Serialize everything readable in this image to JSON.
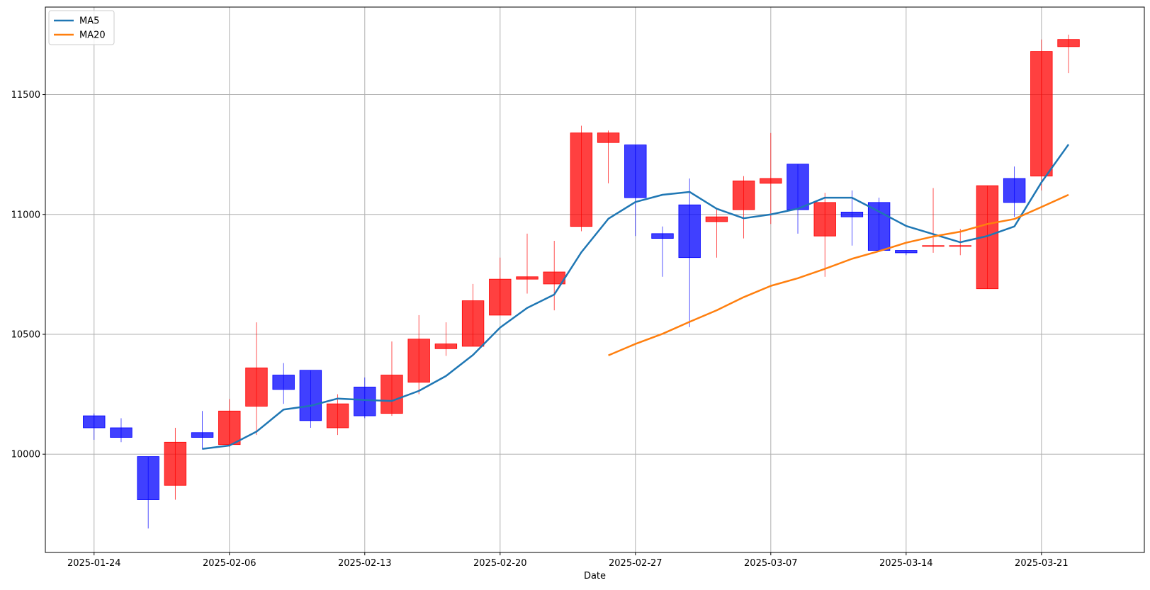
{
  "chart_data": {
    "type": "candlestick",
    "xlabel": "Date",
    "ylabel": "",
    "ylim": [
      9590,
      11865
    ],
    "xlim": [
      -1.8,
      38.8
    ],
    "grid": true,
    "legend_position": "top-left",
    "colors": {
      "up": "#ff0000",
      "down": "#0000ff",
      "ma5": "#1f77b4",
      "ma20": "#ff7f0e"
    },
    "x_ticks": [
      {
        "index": 0,
        "label": "2025-01-24"
      },
      {
        "index": 5,
        "label": "2025-02-06"
      },
      {
        "index": 10,
        "label": "2025-02-13"
      },
      {
        "index": 15,
        "label": "2025-02-20"
      },
      {
        "index": 20,
        "label": "2025-02-27"
      },
      {
        "index": 25,
        "label": "2025-03-07"
      },
      {
        "index": 30,
        "label": "2025-03-14"
      },
      {
        "index": 35,
        "label": "2025-03-21"
      }
    ],
    "y_ticks": [
      10000,
      10500,
      11000,
      11500
    ],
    "candles": [
      {
        "o": 10160,
        "h": 10170,
        "l": 10060,
        "c": 10110
      },
      {
        "o": 10110,
        "h": 10150,
        "l": 10050,
        "c": 10070
      },
      {
        "o": 9990,
        "h": 9990,
        "l": 9690,
        "c": 9810
      },
      {
        "o": 9870,
        "h": 10110,
        "l": 9810,
        "c": 10050
      },
      {
        "o": 10090,
        "h": 10180,
        "l": 10020,
        "c": 10070
      },
      {
        "o": 10040,
        "h": 10230,
        "l": 10030,
        "c": 10180
      },
      {
        "o": 10200,
        "h": 10550,
        "l": 10080,
        "c": 10360
      },
      {
        "o": 10330,
        "h": 10380,
        "l": 10210,
        "c": 10270
      },
      {
        "o": 10350,
        "h": 10350,
        "l": 10110,
        "c": 10140
      },
      {
        "o": 10110,
        "h": 10250,
        "l": 10080,
        "c": 10210
      },
      {
        "o": 10280,
        "h": 10320,
        "l": 10150,
        "c": 10160
      },
      {
        "o": 10170,
        "h": 10470,
        "l": 10160,
        "c": 10330
      },
      {
        "o": 10300,
        "h": 10580,
        "l": 10250,
        "c": 10480
      },
      {
        "o": 10440,
        "h": 10550,
        "l": 10410,
        "c": 10460
      },
      {
        "o": 10450,
        "h": 10710,
        "l": 10450,
        "c": 10640
      },
      {
        "o": 10580,
        "h": 10820,
        "l": 10580,
        "c": 10730
      },
      {
        "o": 10730,
        "h": 10920,
        "l": 10670,
        "c": 10740
      },
      {
        "o": 10710,
        "h": 10890,
        "l": 10600,
        "c": 10760
      },
      {
        "o": 10950,
        "h": 11370,
        "l": 10930,
        "c": 11340
      },
      {
        "o": 11300,
        "h": 11350,
        "l": 11130,
        "c": 11340
      },
      {
        "o": 11290,
        "h": 11290,
        "l": 10910,
        "c": 11070
      },
      {
        "o": 10920,
        "h": 10950,
        "l": 10740,
        "c": 10900
      },
      {
        "o": 11040,
        "h": 11150,
        "l": 10530,
        "c": 10820
      },
      {
        "o": 10970,
        "h": 11020,
        "l": 10820,
        "c": 10990
      },
      {
        "o": 11020,
        "h": 11160,
        "l": 10900,
        "c": 11140
      },
      {
        "o": 11130,
        "h": 11340,
        "l": 10960,
        "c": 11150
      },
      {
        "o": 11210,
        "h": 11210,
        "l": 10920,
        "c": 11020
      },
      {
        "o": 10910,
        "h": 11090,
        "l": 10740,
        "c": 11050
      },
      {
        "o": 11010,
        "h": 11100,
        "l": 10870,
        "c": 10990
      },
      {
        "o": 11050,
        "h": 11070,
        "l": 10850,
        "c": 10850
      },
      {
        "o": 10850,
        "h": 10850,
        "l": 10830,
        "c": 10840
      },
      {
        "o": 10870,
        "h": 11110,
        "l": 10840,
        "c": 10870
      },
      {
        "o": 10870,
        "h": 10940,
        "l": 10830,
        "c": 10870
      },
      {
        "o": 10690,
        "h": 11120,
        "l": 10690,
        "c": 11120
      },
      {
        "o": 11150,
        "h": 11200,
        "l": 10990,
        "c": 11050
      },
      {
        "o": 11160,
        "h": 11730,
        "l": 11100,
        "c": 11680
      },
      {
        "o": 11700,
        "h": 11750,
        "l": 11590,
        "c": 11730
      }
    ],
    "series": [
      {
        "name": "MA5",
        "start_index": 4,
        "values": [
          10022,
          10036,
          10094,
          10186,
          10202,
          10232,
          10226,
          10222,
          10264,
          10326,
          10414,
          10528,
          10610,
          10666,
          10842,
          10982,
          11052,
          11082,
          11094,
          11024,
          10984,
          11000,
          11024,
          11070,
          11070,
          11012,
          10952,
          10918,
          10884,
          10910,
          10950,
          11134,
          11292
        ]
      },
      {
        "name": "MA20",
        "start_index": 19,
        "values": [
          10412,
          10460,
          10502,
          10552,
          10600,
          10655,
          10702,
          10734,
          10773,
          10815,
          10847,
          10882,
          10908,
          10928,
          10960,
          10981,
          11031,
          11082
        ]
      }
    ]
  }
}
